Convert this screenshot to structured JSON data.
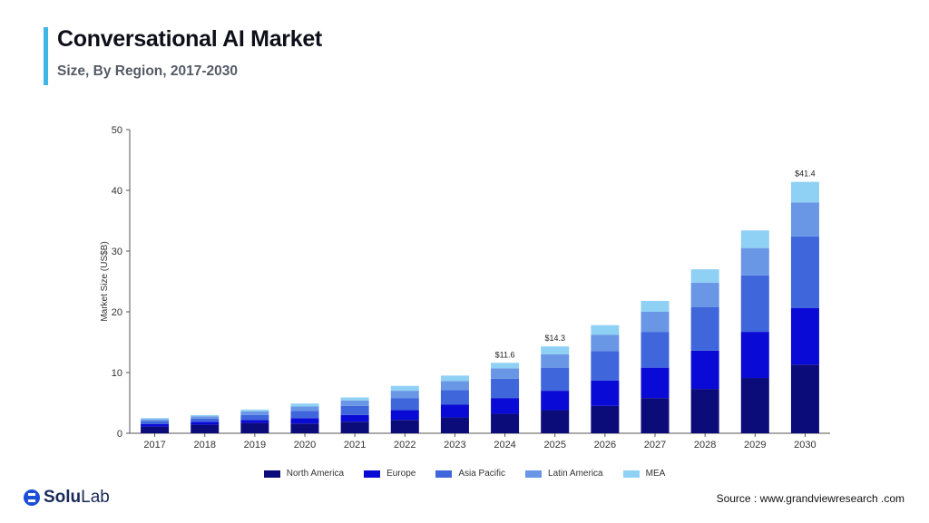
{
  "header": {
    "title": "Conversational AI Market",
    "subtitle": "Size, By Region, 2017-2030"
  },
  "footer": {
    "logo_solu": "Solu",
    "logo_lab": "Lab",
    "source": "Source :  www.grandviewresearch .com"
  },
  "colors": {
    "accent": "#3fb6e8",
    "north_america": "#0b0b7a",
    "europe": "#0a0ad6",
    "asia_pacific": "#3f66db",
    "latin_america": "#6a96e6",
    "mea": "#8fd0f5"
  },
  "chart_data": {
    "type": "bar",
    "stacked": true,
    "title": "",
    "xlabel": "",
    "ylabel": "Market Size (US$B)",
    "ylim": [
      0,
      50
    ],
    "yticks": [
      0,
      10,
      20,
      30,
      40,
      50
    ],
    "categories": [
      "2017",
      "2018",
      "2019",
      "2020",
      "2021",
      "2022",
      "2023",
      "2024",
      "2025",
      "2026",
      "2027",
      "2028",
      "2029",
      "2030"
    ],
    "series": [
      {
        "name": "North America",
        "color": "#0b0b7a",
        "values": [
          1.1,
          1.4,
          1.7,
          1.6,
          1.9,
          2.2,
          2.6,
          3.2,
          3.8,
          4.5,
          5.8,
          7.3,
          9.1,
          11.3
        ]
      },
      {
        "name": "Europe",
        "color": "#0a0ad6",
        "values": [
          0.4,
          0.5,
          0.5,
          0.9,
          1.1,
          1.6,
          2.1,
          2.6,
          3.2,
          4.2,
          5.0,
          6.3,
          7.6,
          9.3
        ]
      },
      {
        "name": "Asia Pacific",
        "color": "#3f66db",
        "values": [
          0.5,
          0.5,
          0.8,
          1.2,
          1.5,
          2.0,
          2.4,
          3.2,
          3.8,
          4.8,
          5.9,
          7.2,
          9.3,
          11.8
        ]
      },
      {
        "name": "Latin America",
        "color": "#6a96e6",
        "values": [
          0.3,
          0.4,
          0.6,
          0.7,
          0.9,
          1.2,
          1.5,
          1.7,
          2.2,
          2.7,
          3.3,
          4.0,
          4.5,
          5.6
        ]
      },
      {
        "name": "MEA",
        "color": "#8fd0f5",
        "values": [
          0.2,
          0.2,
          0.3,
          0.5,
          0.5,
          0.8,
          0.9,
          0.9,
          1.3,
          1.6,
          1.8,
          2.2,
          2.9,
          3.4
        ]
      }
    ],
    "data_labels": [
      {
        "category": "2024",
        "text": "$11.6"
      },
      {
        "category": "2025",
        "text": "$14.3"
      },
      {
        "category": "2030",
        "text": "$41.4"
      }
    ],
    "legend": "bottom",
    "grid": false
  }
}
